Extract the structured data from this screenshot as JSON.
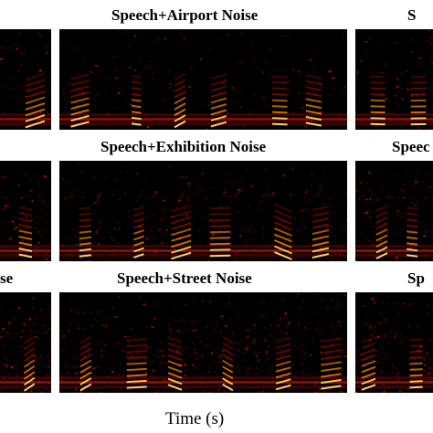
{
  "titles": {
    "row1_center": "Speech+Airport Noise",
    "row1_right": "S",
    "row2_center": "Speech+Exhibition Noise",
    "row2_right": "Speec",
    "row3_left": "se",
    "row3_center": "Speech+Street Noise",
    "row3_right": "Sp"
  },
  "xlabel": "Time (s)",
  "colors": {
    "background": "#000000",
    "low": "#5a0000",
    "mid": "#c81000",
    "high": "#ff8a00",
    "peak": "#ffe070"
  }
}
